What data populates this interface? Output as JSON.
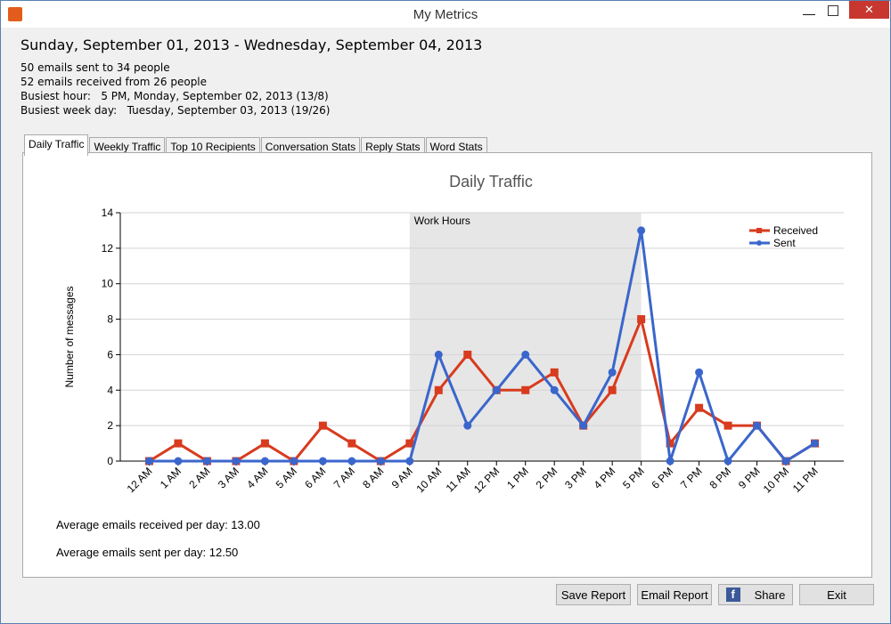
{
  "window": {
    "title": "My Metrics"
  },
  "header": {
    "date_range": "Sunday, September 01, 2013 - Wednesday, September 04, 2013",
    "stats": [
      "50 emails sent to 34 people",
      "52 emails received from 26 people",
      "Busiest hour:   5 PM, Monday, September 02, 2013 (13/8)",
      "Busiest week day:   Tuesday, September 03, 2013 (19/26)"
    ]
  },
  "tabs": [
    "Daily Traffic",
    "Weekly Traffic",
    "Top 10 Recipients",
    "Conversation Stats",
    "Reply Stats",
    "Word Stats"
  ],
  "chart_data": {
    "type": "line",
    "title": "Daily Traffic",
    "y_label": "Number of messages",
    "categories": [
      "12 AM",
      "1 AM",
      "2 AM",
      "3 AM",
      "4 AM",
      "5 AM",
      "6 AM",
      "7 AM",
      "8 AM",
      "9 AM",
      "10 AM",
      "11 AM",
      "12 PM",
      "1 PM",
      "2 PM",
      "3 PM",
      "4 PM",
      "5 PM",
      "6 PM",
      "7 PM",
      "8 PM",
      "9 PM",
      "10 PM",
      "11 PM"
    ],
    "series": [
      {
        "name": "Received",
        "color": "#d83b1e",
        "marker": "square",
        "values": [
          0,
          1,
          0,
          0,
          1,
          0,
          2,
          1,
          0,
          1,
          4,
          6,
          4,
          4,
          5,
          2,
          4,
          8,
          1,
          3,
          2,
          2,
          0,
          1
        ]
      },
      {
        "name": "Sent",
        "color": "#3a66cc",
        "marker": "circle",
        "values": [
          0,
          0,
          0,
          0,
          0,
          0,
          0,
          0,
          0,
          0,
          6,
          2,
          4,
          6,
          4,
          2,
          5,
          13,
          0,
          5,
          0,
          2,
          0,
          1
        ]
      }
    ],
    "ylim": [
      0,
      14
    ],
    "yticks": [
      0,
      2,
      4,
      6,
      8,
      10,
      12,
      14
    ],
    "grid": true,
    "legend": "top-right",
    "shaded_band": {
      "label": "Work Hours",
      "start": 9,
      "end": 17,
      "color": "#e6e6e6"
    }
  },
  "footer": {
    "avg_received": "Average emails received per day: 13.00",
    "avg_sent": "Average emails sent per day: 12.50"
  },
  "buttons": [
    "Save Report",
    "Email Report",
    "Share",
    "Exit"
  ]
}
